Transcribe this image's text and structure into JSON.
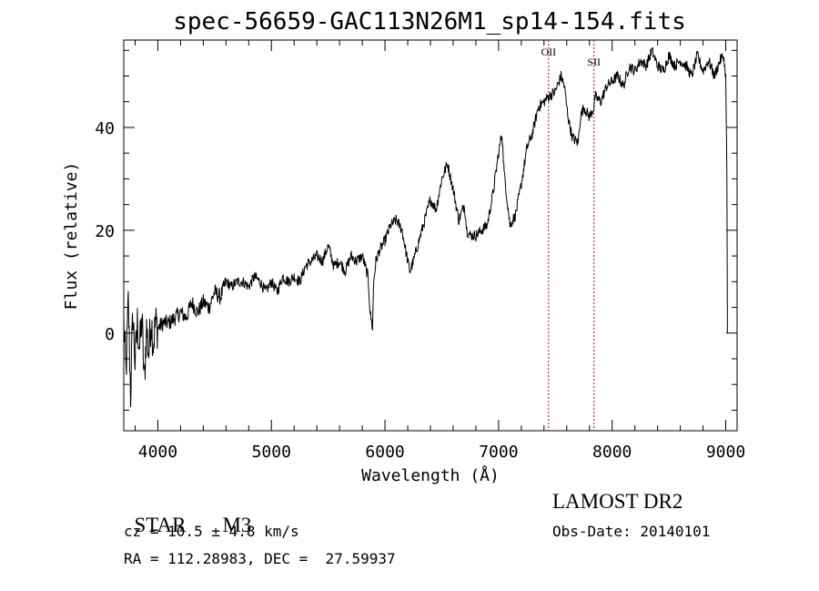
{
  "chart_data": {
    "type": "line",
    "title": "spec-56659-GAC113N26M1_sp14-154.fits",
    "xlabel": "Wavelength (Å)",
    "ylabel": "Flux (relative)",
    "xlim": [
      3700,
      9100
    ],
    "ylim": [
      -19,
      57
    ],
    "xticks": [
      4000,
      5000,
      6000,
      7000,
      8000,
      9000
    ],
    "yticks": [
      0,
      20,
      40
    ],
    "grid": false,
    "legend": "none",
    "line_color": "#000000",
    "marker_color": "#aa1111",
    "lines": [
      {
        "label": "OII",
        "wavelength": 7440
      },
      {
        "label": "SII",
        "wavelength": 7840
      }
    ],
    "series": [
      {
        "x": [
          3700,
          3720,
          3740,
          3760,
          3780,
          3800,
          3820,
          3840,
          3860,
          3880,
          3900,
          3920,
          3940,
          3960,
          3980,
          4000,
          4050,
          4100,
          4150,
          4200,
          4250,
          4300,
          4350,
          4400,
          4450,
          4500,
          4550,
          4600,
          4650,
          4700,
          4750,
          4800,
          4850,
          4900,
          4950,
          5000,
          5050,
          5100,
          5150,
          5200,
          5250,
          5300,
          5350,
          5400,
          5450,
          5500,
          5550,
          5600,
          5650,
          5700,
          5750,
          5800,
          5850,
          5870,
          5890,
          5900,
          5920,
          5950,
          6000,
          6050,
          6100,
          6150,
          6200,
          6220,
          6250,
          6300,
          6350,
          6400,
          6450,
          6500,
          6550,
          6600,
          6650,
          6700,
          6720,
          6750,
          6800,
          6850,
          6900,
          6950,
          7000,
          7030,
          7050,
          7080,
          7100,
          7150,
          7200,
          7250,
          7300,
          7350,
          7400,
          7440,
          7500,
          7550,
          7580,
          7600,
          7620,
          7650,
          7700,
          7720,
          7750,
          7800,
          7840,
          7850,
          7900,
          7950,
          8000,
          8050,
          8100,
          8150,
          8200,
          8250,
          8300,
          8350,
          8400,
          8450,
          8500,
          8550,
          8600,
          8650,
          8700,
          8750,
          8800,
          8850,
          8900,
          8950,
          8980,
          9000,
          9010,
          9015
        ],
        "y": [
          2,
          -8,
          6,
          -12,
          4,
          -6,
          2,
          -3,
          3,
          -10,
          1,
          -4,
          3,
          -2,
          2,
          1,
          2,
          2,
          3,
          4,
          3,
          6,
          4,
          6,
          5,
          8,
          7,
          10,
          9,
          10,
          10,
          9,
          11,
          10,
          8,
          10,
          8,
          11,
          10,
          11,
          10,
          13,
          14,
          15,
          14,
          17,
          13,
          14,
          12,
          15,
          14,
          15,
          11,
          4,
          1,
          10,
          14,
          16,
          18,
          21,
          22,
          20,
          14,
          12,
          14,
          18,
          22,
          26,
          24,
          30,
          33,
          28,
          22,
          25,
          20,
          19,
          19,
          20,
          21,
          27,
          35,
          39,
          31,
          25,
          21,
          23,
          29,
          36,
          39,
          44,
          45,
          46,
          47,
          50,
          48,
          44,
          41,
          38,
          37,
          42,
          44,
          42,
          44,
          46,
          45,
          48,
          49,
          50,
          48,
          52,
          51,
          53,
          52,
          55,
          52,
          51,
          54,
          52,
          53,
          52,
          50,
          54,
          51,
          53,
          50,
          53,
          54,
          50,
          30,
          0
        ]
      }
    ]
  },
  "footer": {
    "class_label": "STAR",
    "subclass": "M3",
    "survey": "LAMOST DR2",
    "cz": "cz = 10.5 ± 4.8 km/s",
    "obs_date": "Obs-Date: 20140101",
    "radec": "RA = 112.28983, DEC =  27.59937"
  }
}
